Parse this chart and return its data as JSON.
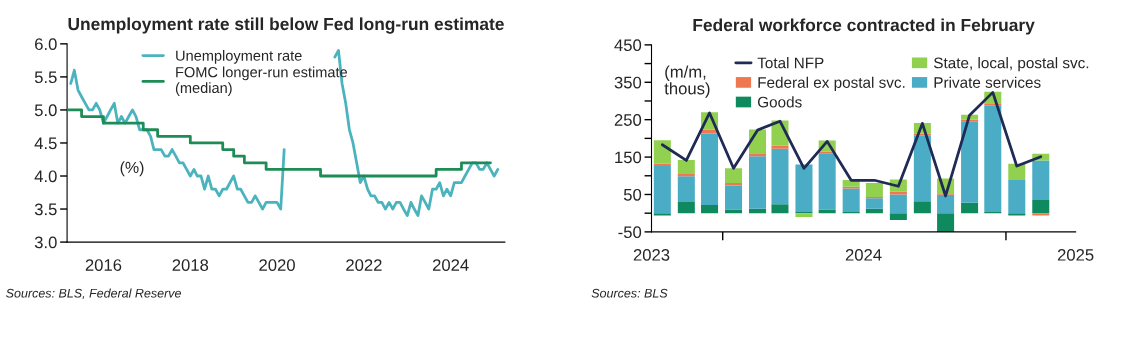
{
  "chart_data": [
    {
      "type": "line",
      "title": "Unemployment rate still below Fed long-run estimate",
      "ylabel": "(%)",
      "xlim": [
        "2015-03-01",
        "2025-04-01"
      ],
      "xticks": [
        {
          "value": "2016-01-01",
          "label": "2016"
        },
        {
          "value": "2018-01-01",
          "label": "2018"
        },
        {
          "value": "2020-01-01",
          "label": "2020"
        },
        {
          "value": "2022-01-01",
          "label": "2022"
        },
        {
          "value": "2024-01-01",
          "label": "2024"
        }
      ],
      "ylim": [
        3,
        6
      ],
      "yticks": [
        {
          "value": 3,
          "label": "3.0"
        },
        {
          "value": 3.5,
          "label": "3.5"
        },
        {
          "value": 4,
          "label": "4.0"
        },
        {
          "value": 4.5,
          "label": "4.5"
        },
        {
          "value": 5,
          "label": "5.0"
        },
        {
          "value": 5.5,
          "label": "5.5"
        },
        {
          "value": 6,
          "label": "6.0"
        }
      ],
      "grid": false,
      "legend": "top",
      "marker": "none",
      "line_style": "solid",
      "annotations": [
        "Sources: BLS, Federal Reserve"
      ],
      "series": [
        {
          "name": "Unemployment rate",
          "color": "#4bb3bd",
          "x": [
            "2015-04",
            "2015-05",
            "2015-06",
            "2015-07",
            "2015-08",
            "2015-09",
            "2015-10",
            "2015-11",
            "2015-12",
            "2016-01",
            "2016-02",
            "2016-03",
            "2016-04",
            "2016-05",
            "2016-06",
            "2016-07",
            "2016-08",
            "2016-09",
            "2016-10",
            "2016-11",
            "2016-12",
            "2017-01",
            "2017-02",
            "2017-03",
            "2017-04",
            "2017-05",
            "2017-06",
            "2017-07",
            "2017-08",
            "2017-09",
            "2017-10",
            "2017-11",
            "2017-12",
            "2018-01",
            "2018-02",
            "2018-03",
            "2018-04",
            "2018-05",
            "2018-06",
            "2018-07",
            "2018-08",
            "2018-09",
            "2018-10",
            "2018-11",
            "2018-12",
            "2019-01",
            "2019-02",
            "2019-03",
            "2019-04",
            "2019-05",
            "2019-06",
            "2019-07",
            "2019-08",
            "2019-09",
            "2019-10",
            "2019-11",
            "2019-12",
            "2020-01",
            "2020-02",
            "2020-03",
            "2020-04",
            "2021-04",
            "2021-05",
            "2021-06",
            "2021-07",
            "2021-08",
            "2021-09",
            "2021-10",
            "2021-11",
            "2021-12",
            "2022-01",
            "2022-02",
            "2022-03",
            "2022-04",
            "2022-05",
            "2022-06",
            "2022-07",
            "2022-08",
            "2022-09",
            "2022-10",
            "2022-11",
            "2022-12",
            "2023-01",
            "2023-02",
            "2023-03",
            "2023-04",
            "2023-05",
            "2023-06",
            "2023-07",
            "2023-08",
            "2023-09",
            "2023-10",
            "2023-11",
            "2023-12",
            "2024-01",
            "2024-02",
            "2024-03",
            "2024-04",
            "2024-05",
            "2024-06",
            "2024-07",
            "2024-08",
            "2024-09",
            "2024-10",
            "2024-11",
            "2024-12",
            "2025-01",
            "2025-02"
          ],
          "values": [
            5.4,
            5.6,
            5.3,
            5.2,
            5.1,
            5.0,
            5.0,
            5.1,
            5.0,
            4.8,
            4.9,
            5.0,
            5.1,
            4.8,
            4.9,
            4.8,
            4.9,
            5.0,
            4.9,
            4.7,
            4.7,
            4.7,
            4.6,
            4.4,
            4.4,
            4.4,
            4.3,
            4.3,
            4.4,
            4.3,
            4.2,
            4.2,
            4.1,
            4.0,
            4.1,
            4.0,
            4.0,
            3.8,
            4.0,
            3.8,
            3.8,
            3.7,
            3.8,
            3.8,
            3.9,
            4.0,
            3.8,
            3.8,
            3.7,
            3.6,
            3.6,
            3.7,
            3.6,
            3.5,
            3.6,
            3.6,
            3.6,
            3.6,
            3.5,
            4.4,
            null,
            null,
            5.8,
            5.9,
            5.4,
            5.1,
            4.7,
            4.5,
            4.2,
            3.9,
            4.0,
            3.8,
            3.7,
            3.7,
            3.6,
            3.6,
            3.5,
            3.6,
            3.5,
            3.6,
            3.6,
            3.5,
            3.4,
            3.6,
            3.5,
            3.4,
            3.7,
            3.6,
            3.5,
            3.8,
            3.8,
            3.9,
            3.7,
            3.8,
            3.7,
            3.9,
            3.9,
            3.9,
            4.0,
            4.1,
            4.2,
            4.2,
            4.1,
            4.1,
            4.2,
            4.1,
            4.0,
            4.1
          ]
        },
        {
          "name": "FOMC longer-run estimate\n(median)",
          "color": "#1e8c57",
          "type": "step",
          "x": [
            "2015-03",
            "2015-07",
            "2016-01",
            "2016-12",
            "2017-04",
            "2018-01",
            "2018-10",
            "2019-01",
            "2019-04",
            "2019-10",
            "2021-01",
            "2023-09",
            "2024-04",
            "2024-12"
          ],
          "values": [
            5.0,
            4.9,
            4.8,
            4.7,
            4.6,
            4.5,
            4.4,
            4.3,
            4.2,
            4.1,
            4.0,
            4.1,
            4.2,
            4.2
          ]
        }
      ]
    },
    {
      "type": "bar",
      "stacked": true,
      "title": "Federal workforce contracted in February",
      "ylabel": "(m/m,\nthous)",
      "xlim": [
        "2023-10-01",
        "2025-04-01"
      ],
      "xticks": [
        {
          "value": "2023-10-01",
          "label": "2023"
        },
        {
          "value": "2024-01-01",
          "label": null
        },
        {
          "value": "2024-07-01",
          "label": "2024"
        },
        {
          "value": "2025-01-01",
          "label": null
        },
        {
          "value": "2025-04-01",
          "label": "2025"
        }
      ],
      "ylim": [
        -50,
        450
      ],
      "yticks": [
        -50,
        {
          "value": 0,
          "label": null
        },
        50,
        {
          "value": 100,
          "label": null
        },
        150,
        {
          "value": 200,
          "label": null
        },
        250,
        {
          "value": 300,
          "label": null
        },
        350,
        {
          "value": 400,
          "label": null
        },
        450
      ],
      "grid": false,
      "legend": "top",
      "marker": "none",
      "line_style": "solid",
      "annotations": [
        "Sources: BLS"
      ],
      "x": [
        "2023-10-15",
        "2023-11-15",
        "2023-12-15",
        "2024-01-15",
        "2024-02-15",
        "2024-03-15",
        "2024-04-15",
        "2024-05-15",
        "2024-06-15",
        "2024-07-15",
        "2024-08-15",
        "2024-09-15",
        "2024-10-15",
        "2024-11-15",
        "2024-12-15",
        "2025-01-15",
        "2025-02-15"
      ],
      "series": [
        {
          "name": "Goods",
          "color": "#0f8a5f",
          "values": [
            -6,
            30,
            22,
            10,
            12,
            24,
            3,
            10,
            3,
            12,
            -18,
            32,
            -50,
            28,
            3,
            -6,
            35
          ]
        },
        {
          "name": "Private services",
          "color": "#4bacc6",
          "values": [
            126,
            69,
            191,
            64,
            140,
            148,
            127,
            150,
            63,
            28,
            50,
            175,
            49,
            218,
            284,
            89,
            106
          ]
        },
        {
          "name": "Federal ex postal svc.",
          "color": "#f07850",
          "values": [
            7,
            6,
            10,
            7,
            8,
            9,
            0,
            5,
            5,
            3,
            7,
            6,
            4,
            4,
            7,
            null,
            -6
          ]
        },
        {
          "name": "State, local, postal svc.",
          "color": "#92d050",
          "values": [
            62,
            37,
            47,
            39,
            64,
            67,
            -10,
            29,
            18,
            38,
            33,
            28,
            40,
            13,
            31,
            43,
            18
          ]
        },
        {
          "name": "Total NFP",
          "color": "#1f2a55",
          "type": "line",
          "values": [
            183,
            141,
            268,
            120,
            222,
            246,
            120,
            192,
            88,
            88,
            72,
            240,
            46,
            262,
            323,
            126,
            151
          ]
        }
      ]
    }
  ]
}
